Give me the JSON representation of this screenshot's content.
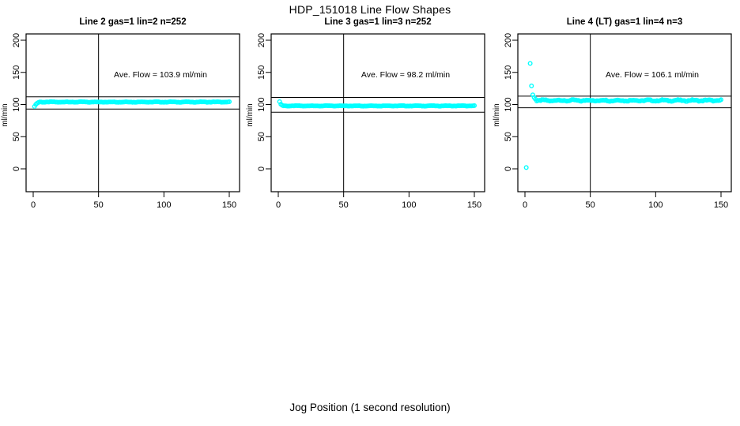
{
  "window": {
    "background_color": "#ffffff",
    "accent_color": "#00FFFF"
  },
  "chart_data": {
    "type": "scatter",
    "title": "HDP_151018  Line Flow Shapes",
    "xlabel": "Jog Position (1 second resolution)",
    "ylabel": "ml/min",
    "x_ticks": [
      0,
      50,
      100,
      150
    ],
    "y_ticks": [
      0,
      50,
      100,
      150,
      200
    ],
    "xlim": [
      -5.5,
      158
    ],
    "ylim": [
      -36,
      210
    ],
    "grid": false,
    "legend": "none",
    "point_style": "open-circle",
    "point_color": "#00FFFF",
    "axis_color": "#000000",
    "panels": [
      {
        "title": "Line 2 gas=1 lin=2 n=252",
        "annotation": "Ave. Flow =  103.9  ml/min",
        "ave_flow_ml_min": 103.9,
        "vline_x": 50,
        "hlines": [
          112,
          93
        ],
        "transient_points": [
          [
            1,
            97.0
          ],
          [
            2,
            100.2
          ],
          [
            3,
            102.0
          ],
          [
            4,
            103.2
          ]
        ],
        "steady": {
          "x_from": 5,
          "x_to": 150,
          "value": 103.9,
          "jitter": 0.6
        }
      },
      {
        "title": "Line 3 gas=1 lin=3 n=252",
        "annotation": "Ave. Flow =  98.2  ml/min",
        "ave_flow_ml_min": 98.2,
        "vline_x": 50,
        "hlines": [
          111,
          88
        ],
        "transient_points": [
          [
            1,
            104.5
          ],
          [
            2,
            100.5
          ],
          [
            3,
            98.8
          ]
        ],
        "steady": {
          "x_from": 4,
          "x_to": 150,
          "value": 97.9,
          "jitter": 0.5
        }
      },
      {
        "title": "Line 4 (LT) gas=1 lin=4 n=3",
        "annotation": "Ave. Flow =  106.1  ml/min",
        "ave_flow_ml_min": 106.1,
        "vline_x": 50,
        "hlines": [
          113,
          95
        ],
        "transient_points": [
          [
            1,
            2
          ],
          [
            4,
            164
          ],
          [
            5,
            129
          ],
          [
            6,
            115
          ],
          [
            7,
            111
          ],
          [
            8,
            108.5
          ]
        ],
        "steady": {
          "x_from": 9,
          "x_to": 150,
          "value": 106.3,
          "jitter": 1.5
        }
      }
    ]
  }
}
